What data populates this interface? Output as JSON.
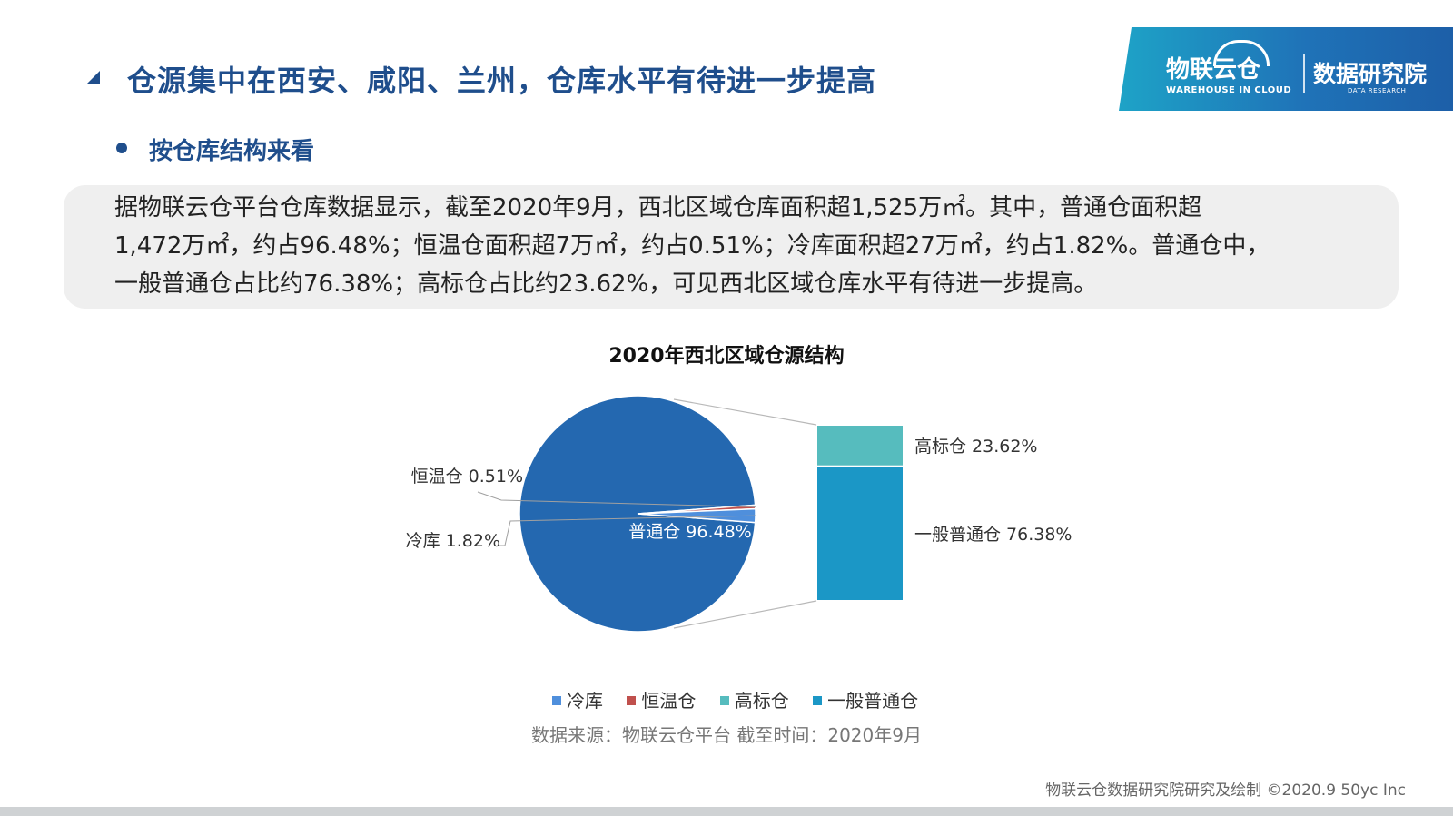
{
  "header": {
    "title": "仓源集中在西安、咸阳、兰州，仓库水平有待进一步提高"
  },
  "logo": {
    "brand": "物联云仓",
    "brand_sub": "WAREHOUSE IN CLOUD",
    "research": "数据研究院",
    "research_sub": "DATA RESEARCH"
  },
  "section": {
    "heading": "按仓库结构来看"
  },
  "description": {
    "lines": [
      "据物联云仓平台仓库数据显示，截至2020年9月，西北区域仓库面积超1,525万㎡。其中，普通仓面积超",
      "1,472万㎡，约占96.48%；恒温仓面积超7万㎡，约占0.51%；冷库面积超27万㎡，约占1.82%。普通仓中，",
      "一般普通仓占比约76.38%；高标仓占比约23.62%，可见西北区域仓库水平有待进一步提高。"
    ]
  },
  "chart_data": {
    "type": "pie",
    "subtype": "bar-of-pie",
    "title": "2020年西北区域仓源结构",
    "pie": {
      "slices": [
        {
          "name": "普通仓",
          "value": 96.48,
          "label": "普通仓 96.48%",
          "color": "#2468b0"
        },
        {
          "name": "恒温仓",
          "value": 0.51,
          "label": "恒温仓 0.51%",
          "color": "#c0504d"
        },
        {
          "name": "冷库",
          "value": 1.82,
          "label": "冷库 1.82%",
          "color": "#4f8fdc"
        }
      ]
    },
    "bar": {
      "exploded_from": "普通仓",
      "segments": [
        {
          "name": "高标仓",
          "value": 23.62,
          "label": "高标仓 23.62%",
          "color": "#56bcbe"
        },
        {
          "name": "一般普通仓",
          "value": 76.38,
          "label": "一般普通仓 76.38%",
          "color": "#1b97c6"
        }
      ]
    },
    "legend": {
      "position": "bottom",
      "entries": [
        {
          "name": "冷库",
          "color": "#4f8fdc"
        },
        {
          "name": "恒温仓",
          "color": "#c0504d"
        },
        {
          "name": "高标仓",
          "color": "#56bcbe"
        },
        {
          "name": "一般普通仓",
          "color": "#1b97c6"
        }
      ]
    }
  },
  "source_note": "数据来源：物联云仓平台   截至时间：2020年9月",
  "footer": "物联云仓数据研究院研究及绘制     ©2020.9 50yc Inc"
}
